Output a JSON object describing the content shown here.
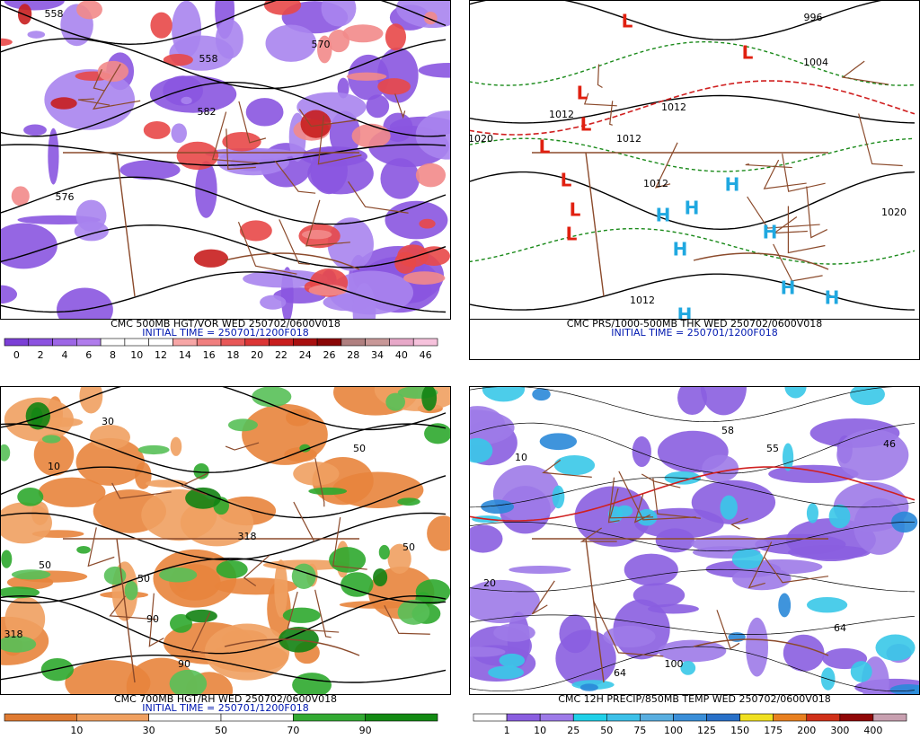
{
  "panels": [
    {
      "caption": "CMC 500MB HGT/VOR WED 250702/0600V018",
      "initial_time": "INITIAL TIME = 250701/1200F018",
      "contour_labels": [
        558,
        570,
        558,
        582,
        576
      ],
      "pressure_centers": [],
      "colorbar": {
        "labels": [
          0,
          2,
          4,
          6,
          8,
          10,
          12,
          14,
          16,
          18,
          20,
          22,
          24,
          26,
          28,
          34,
          40,
          46
        ],
        "colors": [
          "#7b3fd6",
          "#8c52e0",
          "#9d66e6",
          "#b07cec",
          "#ffffff",
          "#ffffff",
          "#ffffff",
          "#f7a6a6",
          "#f07f7f",
          "#e85858",
          "#dc3636",
          "#c81e1e",
          "#a80f0f",
          "#8a0606",
          "#b08080",
          "#c89898",
          "#e7a8c8",
          "#f6c2dc"
        ]
      }
    },
    {
      "caption": "CMC PRS/1000-500MB THK WED 250702/0600V018",
      "initial_time": "INITIAL TIME = 250701/1200F018",
      "contour_labels": [
        996,
        1004,
        1020,
        1012,
        1012,
        1012,
        1012,
        1020,
        1012
      ],
      "pressure_centers": [
        "L",
        "L",
        "L",
        "L",
        "L",
        "L",
        "L",
        "L",
        "H",
        "H",
        "H",
        "H",
        "H",
        "H",
        "H",
        "H"
      ],
      "colorbar": null
    },
    {
      "caption": "CMC 700MB HGT/RH WED 250702/0600V018",
      "initial_time": "INITIAL TIME = 250701/1200F018",
      "contour_labels": [
        318,
        318,
        50,
        50,
        50,
        10,
        90,
        90,
        30,
        50
      ],
      "pressure_centers": [],
      "colorbar": {
        "labels": [
          10,
          30,
          50,
          70,
          90
        ],
        "colors": [
          "#e07b32",
          "#f0a060",
          "#ffffff",
          "#ffffff",
          "#33aa33",
          "#138a13"
        ]
      }
    },
    {
      "caption": "CMC 12H PRECIP/850MB TEMP WED 250702/0600V018",
      "initial_time": null,
      "contour_labels": [
        64,
        46,
        55,
        100,
        64,
        20,
        10,
        58
      ],
      "pressure_centers": [],
      "colorbar": {
        "labels": [
          1,
          10,
          25,
          50,
          75,
          100,
          125,
          150,
          175,
          200,
          300,
          400
        ],
        "colors": [
          "#ffffff",
          "#8a5ee0",
          "#9d7ae8",
          "#1fd0e8",
          "#3cc0e8",
          "#58aee0",
          "#3a8ed8",
          "#2870c8",
          "#f0e020",
          "#e88020",
          "#d03018",
          "#900808",
          "#c8a0b0"
        ]
      }
    }
  ]
}
